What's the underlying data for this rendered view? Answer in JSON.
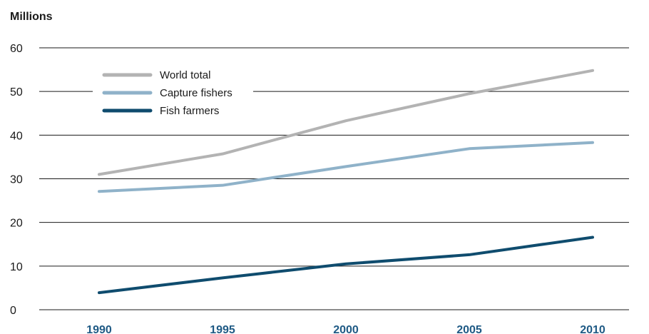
{
  "chart_data": {
    "type": "line",
    "ylabel": "Millions",
    "xlabel": "",
    "x": [
      "1990",
      "1995",
      "2000",
      "2005",
      "2010"
    ],
    "ylim": [
      0,
      60
    ],
    "yticks": [
      "0",
      "10",
      "20",
      "30",
      "40",
      "50",
      "60"
    ],
    "grid": true,
    "legend_position": "top-left",
    "series": [
      {
        "name": "World total",
        "color": "#b3b3b3",
        "values": [
          31.0,
          35.7,
          43.3,
          49.5,
          54.8
        ]
      },
      {
        "name": "Capture fishers",
        "color": "#8fb2c9",
        "values": [
          27.1,
          28.5,
          32.8,
          36.9,
          38.3
        ]
      },
      {
        "name": "Fish farmers",
        "color": "#0f4c6e",
        "values": [
          3.9,
          7.3,
          10.5,
          12.6,
          16.6
        ]
      }
    ]
  }
}
